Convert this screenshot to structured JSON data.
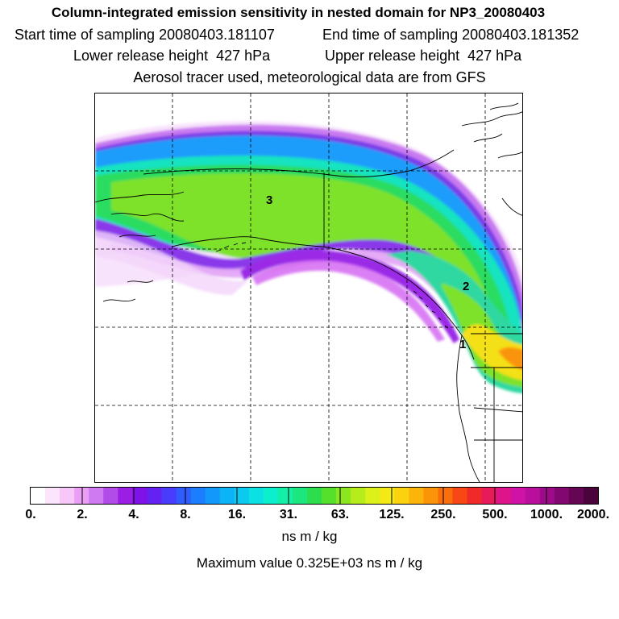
{
  "header": {
    "title": "Column-integrated emission sensitivity in nested domain for NP3_20080403",
    "start_time": "Start time of sampling 20080403.181107",
    "end_time": "End time of sampling 20080403.181352",
    "lower_release": "Lower release height  427 hPa",
    "upper_release": "Upper release height  427 hPa",
    "tracer_note": "Aerosol tracer used, meteorological data are from GFS"
  },
  "map": {
    "labels": {
      "label_3": "3",
      "label_2": "2",
      "label_1": "1"
    }
  },
  "colorbar": {
    "ticks": [
      "0.",
      "2.",
      "4.",
      "8.",
      "16.",
      "31.",
      "63.",
      "125.",
      "250.",
      "500.",
      "1000.",
      "2000."
    ],
    "colors": [
      "#ffffff",
      "#fde4fd",
      "#f8c7fa",
      "#eb9ef6",
      "#cf7af0",
      "#b14ce8",
      "#9a1ee3",
      "#7f12e6",
      "#6421f2",
      "#4a3cfc",
      "#2f5cfd",
      "#1c7dfd",
      "#1298fb",
      "#0db3f7",
      "#0bc9ef",
      "#0be1e2",
      "#0cefcd",
      "#12f0a8",
      "#1ce77e",
      "#2cde4e",
      "#55e02c",
      "#8be61f",
      "#b6ec1c",
      "#dcf01a",
      "#f3ea15",
      "#fad20f",
      "#fcb40b",
      "#fb9409",
      "#fa6f0b",
      "#f64715",
      "#f02a2a",
      "#e81b5a",
      "#de158a",
      "#cf13a6",
      "#b80f9c",
      "#9d0b8a",
      "#82086f",
      "#660553",
      "#4a033b"
    ],
    "units": "ns m / kg",
    "max_value": "Maximum value  0.325E+03 ns m / kg"
  }
}
